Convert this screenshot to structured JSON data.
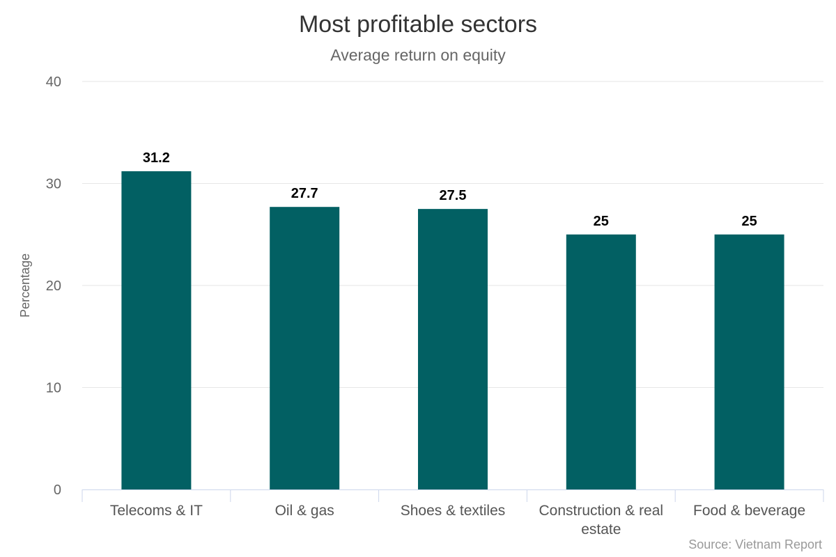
{
  "chart_data": {
    "type": "bar",
    "title": "Most profitable sectors",
    "subtitle": "Average return on equity",
    "ylabel": "Percentage",
    "xlabel": "",
    "categories": [
      "Telecoms & IT",
      "Oil & gas",
      "Shoes & textiles",
      "Construction & real estate",
      "Food & beverage"
    ],
    "category_lines": [
      [
        "Telecoms & IT"
      ],
      [
        "Oil & gas"
      ],
      [
        "Shoes & textiles"
      ],
      [
        "Construction & real",
        "estate"
      ],
      [
        "Food & beverage"
      ]
    ],
    "values": [
      31.2,
      27.7,
      27.5,
      25,
      25
    ],
    "data_labels": [
      "31.2",
      "27.7",
      "27.5",
      "25",
      "25"
    ],
    "ylim": [
      0,
      40
    ],
    "yticks": [
      0,
      10,
      20,
      30,
      40
    ],
    "grid": true,
    "legend": "none",
    "color": "#026063",
    "credit": "Source: Vietnam Report"
  }
}
